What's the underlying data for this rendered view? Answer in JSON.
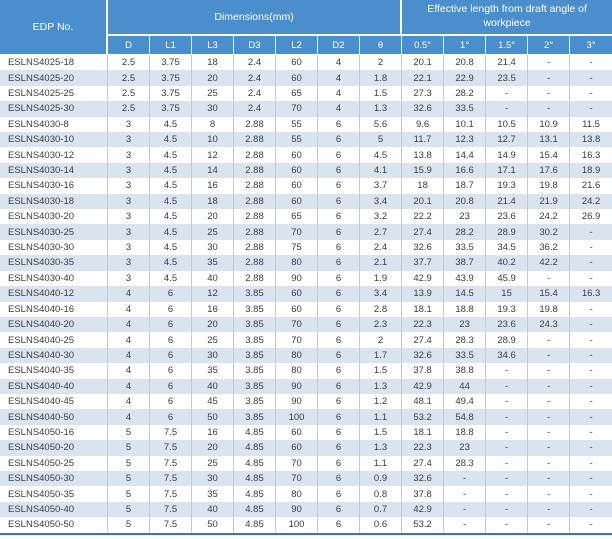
{
  "colors": {
    "header_bg": "#4a8ecd",
    "stripe": "#d9e4f0",
    "body_border": "#b7cde0",
    "bottom_rule": "#2e77bd",
    "body_text": "#3c3c3c"
  },
  "table": {
    "header": {
      "edp_label": "EDP No.",
      "dimensions_label": "Dimensions(mm)",
      "effective_label": "Effective length from draft angle of workpiece",
      "dim_cols": [
        "D",
        "L1",
        "L3",
        "D3",
        "L2",
        "D2",
        "θ"
      ],
      "angle_cols": [
        "0.5°",
        "1°",
        "1.5°",
        "2°",
        "3°"
      ]
    },
    "rows": [
      [
        "ESLNS4025-18",
        "2.5",
        "3.75",
        "18",
        "2.4",
        "60",
        "4",
        "2",
        "20.1",
        "20.8",
        "21.4",
        "-",
        "-"
      ],
      [
        "ESLNS4025-20",
        "2.5",
        "3.75",
        "20",
        "2.4",
        "60",
        "4",
        "1.8",
        "22.1",
        "22.9",
        "23.5",
        "-",
        "-"
      ],
      [
        "ESLNS4025-25",
        "2.5",
        "3.75",
        "25",
        "2.4",
        "65",
        "4",
        "1.5",
        "27.3",
        "28.2",
        "-",
        "-",
        "-"
      ],
      [
        "ESLNS4025-30",
        "2.5",
        "3.75",
        "30",
        "2.4",
        "70",
        "4",
        "1.3",
        "32.6",
        "33.5",
        "-",
        "-",
        "-"
      ],
      [
        "ESLNS4030-8",
        "3",
        "4.5",
        "8",
        "2.88",
        "55",
        "6",
        "5.6",
        "9.6",
        "10.1",
        "10.5",
        "10.9",
        "11.5"
      ],
      [
        "ESLNS4030-10",
        "3",
        "4.5",
        "10",
        "2.88",
        "55",
        "6",
        "5",
        "11.7",
        "12.3",
        "12.7",
        "13.1",
        "13.8"
      ],
      [
        "ESLNS4030-12",
        "3",
        "4.5",
        "12",
        "2.88",
        "60",
        "6",
        "4.5",
        "13.8",
        "14.4",
        "14.9",
        "15.4",
        "16.3"
      ],
      [
        "ESLNS4030-14",
        "3",
        "4.5",
        "14",
        "2.88",
        "60",
        "6",
        "4.1",
        "15.9",
        "16.6",
        "17.1",
        "17.6",
        "18.9"
      ],
      [
        "ESLNS4030-16",
        "3",
        "4.5",
        "16",
        "2.88",
        "60",
        "6",
        "3.7",
        "18",
        "18.7",
        "19.3",
        "19.8",
        "21.6"
      ],
      [
        "ESLNS4030-18",
        "3",
        "4.5",
        "18",
        "2.88",
        "60",
        "6",
        "3.4",
        "20.1",
        "20.8",
        "21.4",
        "21.9",
        "24.2"
      ],
      [
        "ESLNS4030-20",
        "3",
        "4.5",
        "20",
        "2.88",
        "65",
        "6",
        "3.2",
        "22.2",
        "23",
        "23.6",
        "24.2",
        "26.9"
      ],
      [
        "ESLNS4030-25",
        "3",
        "4.5",
        "25",
        "2.88",
        "70",
        "6",
        "2.7",
        "27.4",
        "28.2",
        "28.9",
        "30.2",
        "-"
      ],
      [
        "ESLNS4030-30",
        "3",
        "4.5",
        "30",
        "2.88",
        "75",
        "6",
        "2.4",
        "32.6",
        "33.5",
        "34.5",
        "36.2",
        "-"
      ],
      [
        "ESLNS4030-35",
        "3",
        "4.5",
        "35",
        "2.88",
        "80",
        "6",
        "2.1",
        "37.7",
        "38.7",
        "40.2",
        "42.2",
        "-"
      ],
      [
        "ESLNS4030-40",
        "3",
        "4.5",
        "40",
        "2.88",
        "90",
        "6",
        "1.9",
        "42.9",
        "43.9",
        "45.9",
        "-",
        "-"
      ],
      [
        "ESLNS4040-12",
        "4",
        "6",
        "12",
        "3.85",
        "60",
        "6",
        "3.4",
        "13.9",
        "14.5",
        "15",
        "15.4",
        "16.3"
      ],
      [
        "ESLNS4040-16",
        "4",
        "6",
        "16",
        "3.85",
        "60",
        "6",
        "2.8",
        "18.1",
        "18.8",
        "19.3",
        "19.8",
        "-"
      ],
      [
        "ESLNS4040-20",
        "4",
        "6",
        "20",
        "3.85",
        "70",
        "6",
        "2.3",
        "22.3",
        "23",
        "23.6",
        "24.3",
        "-"
      ],
      [
        "ESLNS4040-25",
        "4",
        "6",
        "25",
        "3.85",
        "70",
        "6",
        "2",
        "27.4",
        "28.3",
        "28.9",
        "-",
        "-"
      ],
      [
        "ESLNS4040-30",
        "4",
        "6",
        "30",
        "3.85",
        "80",
        "6",
        "1.7",
        "32.6",
        "33.5",
        "34.6",
        "-",
        "-"
      ],
      [
        "ESLNS4040-35",
        "4",
        "6",
        "35",
        "3.85",
        "80",
        "6",
        "1.5",
        "37.8",
        "38.8",
        "-",
        "-",
        "-"
      ],
      [
        "ESLNS4040-40",
        "4",
        "6",
        "40",
        "3.85",
        "90",
        "6",
        "1.3",
        "42.9",
        "44",
        "-",
        "-",
        "-"
      ],
      [
        "ESLNS4040-45",
        "4",
        "6",
        "45",
        "3.85",
        "90",
        "6",
        "1.2",
        "48.1",
        "49.4",
        "-",
        "-",
        "-"
      ],
      [
        "ESLNS4040-50",
        "4",
        "6",
        "50",
        "3.85",
        "100",
        "6",
        "1.1",
        "53.2",
        "54.8",
        "-",
        "-",
        "-"
      ],
      [
        "ESLNS4050-16",
        "5",
        "7.5",
        "16",
        "4.85",
        "60",
        "6",
        "1.5",
        "18.1",
        "18.8",
        "-",
        "-",
        "-"
      ],
      [
        "ESLNS4050-20",
        "5",
        "7.5",
        "20",
        "4.85",
        "60",
        "6",
        "1.3",
        "22.3",
        "23",
        "-",
        "-",
        "-"
      ],
      [
        "ESLNS4050-25",
        "5",
        "7.5",
        "25",
        "4.85",
        "70",
        "6",
        "1.1",
        "27.4",
        "28.3",
        "-",
        "-",
        "-"
      ],
      [
        "ESLNS4050-30",
        "5",
        "7.5",
        "30",
        "4.85",
        "70",
        "6",
        "0.9",
        "32.6",
        "-",
        "-",
        "-",
        "-"
      ],
      [
        "ESLNS4050-35",
        "5",
        "7.5",
        "35",
        "4.85",
        "80",
        "6",
        "0.8",
        "37.8",
        "-",
        "-",
        "-",
        "-"
      ],
      [
        "ESLNS4050-40",
        "5",
        "7.5",
        "40",
        "4.85",
        "90",
        "6",
        "0.7",
        "42.9",
        "-",
        "-",
        "-",
        "-"
      ],
      [
        "ESLNS4050-50",
        "5",
        "7.5",
        "50",
        "4.85",
        "100",
        "6",
        "0.6",
        "53.2",
        "-",
        "-",
        "-",
        "-"
      ]
    ]
  }
}
